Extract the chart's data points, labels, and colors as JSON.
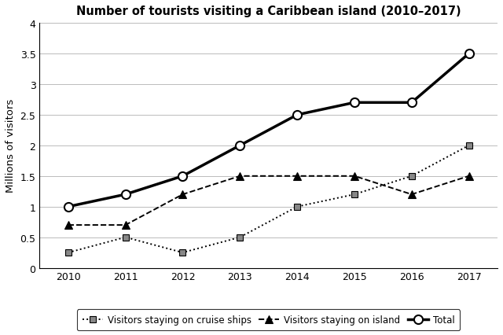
{
  "title": "Number of tourists visiting a Caribbean island (2010–2017)",
  "ylabel": "Millions of visitors",
  "years": [
    2010,
    2011,
    2012,
    2013,
    2014,
    2015,
    2016,
    2017
  ],
  "cruise_ships": [
    0.25,
    0.5,
    0.25,
    0.5,
    1.0,
    1.2,
    1.5,
    2.0
  ],
  "island": [
    0.7,
    0.7,
    1.2,
    1.5,
    1.5,
    1.5,
    1.2,
    1.5
  ],
  "total": [
    1.0,
    1.2,
    1.5,
    2.0,
    2.5,
    2.7,
    2.7,
    3.5
  ],
  "ylim": [
    0,
    4
  ],
  "yticks": [
    0,
    0.5,
    1.0,
    1.5,
    2.0,
    2.5,
    3.0,
    3.5,
    4.0
  ],
  "ytick_labels": [
    "0",
    "0.5",
    "1",
    "1.5",
    "2",
    "2.5",
    "3",
    "3.5",
    "4"
  ],
  "legend_labels": [
    "Visitors staying on cruise ships",
    "Visitors staying on island",
    "Total"
  ],
  "background_color": "#ffffff",
  "marker_gray": "#888888"
}
